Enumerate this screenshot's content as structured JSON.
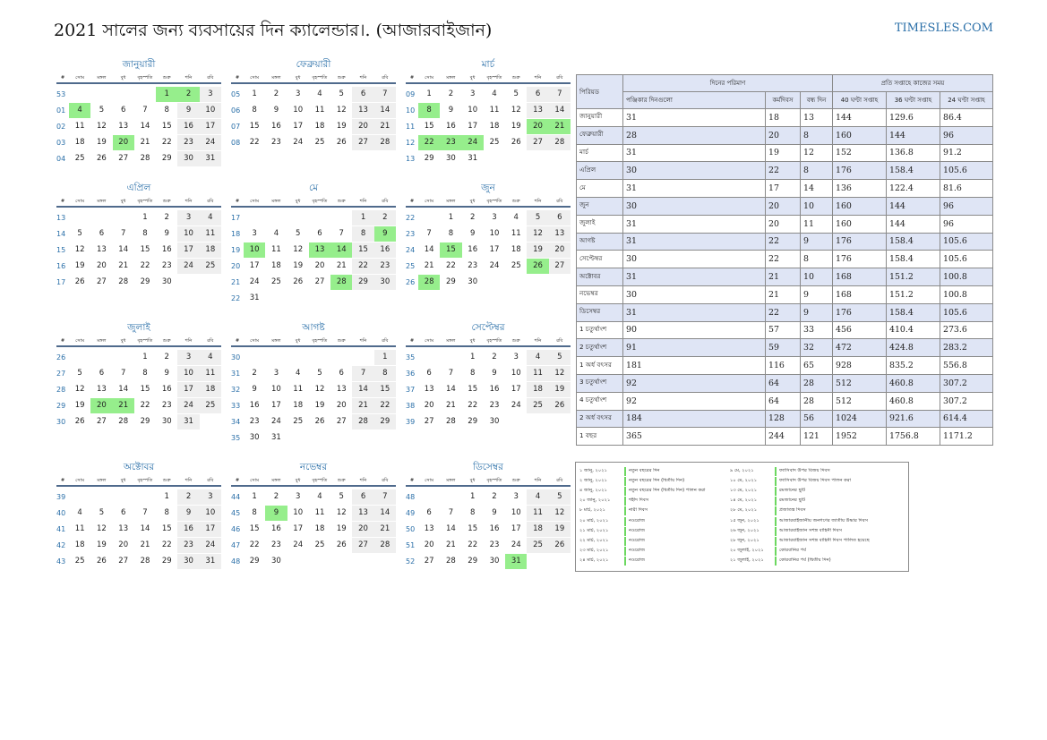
{
  "title": "2021 সালের জন্য ব্যবসায়ের দিন ক্যালেন্ডার।. (আজারবাইজান)",
  "site": "TIMESLES.COM",
  "colors": {
    "accent": "#2a6fa8",
    "holiday": "#96ee8c",
    "weekend": "#efefef",
    "header_shade": "#dfe5f5"
  },
  "weekday_headers": [
    "#",
    "সোম",
    "মঙ্গল",
    "বুধ",
    "বৃহস্পতি",
    "শুক্র",
    "শনি",
    "রবি"
  ],
  "months": [
    {
      "name": "জানুয়ারী",
      "weeks": [
        [
          "53",
          "",
          "",
          "",
          "",
          "1",
          "2",
          "3"
        ],
        [
          "01",
          "4",
          "5",
          "6",
          "7",
          "8",
          "9",
          "10"
        ],
        [
          "02",
          "11",
          "12",
          "13",
          "14",
          "15",
          "16",
          "17"
        ],
        [
          "03",
          "18",
          "19",
          "20",
          "21",
          "22",
          "23",
          "24"
        ],
        [
          "04",
          "25",
          "26",
          "27",
          "28",
          "29",
          "30",
          "31"
        ]
      ],
      "holidays": [
        "1",
        "2",
        "4",
        "20"
      ]
    },
    {
      "name": "ফেব্রুয়ারী",
      "weeks": [
        [
          "05",
          "1",
          "2",
          "3",
          "4",
          "5",
          "6",
          "7"
        ],
        [
          "06",
          "8",
          "9",
          "10",
          "11",
          "12",
          "13",
          "14"
        ],
        [
          "07",
          "15",
          "16",
          "17",
          "18",
          "19",
          "20",
          "21"
        ],
        [
          "08",
          "22",
          "23",
          "24",
          "25",
          "26",
          "27",
          "28"
        ]
      ],
      "holidays": []
    },
    {
      "name": "মার্চ",
      "weeks": [
        [
          "09",
          "1",
          "2",
          "3",
          "4",
          "5",
          "6",
          "7"
        ],
        [
          "10",
          "8",
          "9",
          "10",
          "11",
          "12",
          "13",
          "14"
        ],
        [
          "11",
          "15",
          "16",
          "17",
          "18",
          "19",
          "20",
          "21"
        ],
        [
          "12",
          "22",
          "23",
          "24",
          "25",
          "26",
          "27",
          "28"
        ],
        [
          "13",
          "29",
          "30",
          "31",
          "",
          "",
          "",
          ""
        ]
      ],
      "holidays": [
        "8",
        "20",
        "21",
        "22",
        "23",
        "24"
      ]
    },
    {
      "name": "এপ্রিল",
      "weeks": [
        [
          "13",
          "",
          "",
          "",
          "1",
          "2",
          "3",
          "4"
        ],
        [
          "14",
          "5",
          "6",
          "7",
          "8",
          "9",
          "10",
          "11"
        ],
        [
          "15",
          "12",
          "13",
          "14",
          "15",
          "16",
          "17",
          "18"
        ],
        [
          "16",
          "19",
          "20",
          "21",
          "22",
          "23",
          "24",
          "25"
        ],
        [
          "17",
          "26",
          "27",
          "28",
          "29",
          "30",
          "",
          ""
        ]
      ],
      "holidays": []
    },
    {
      "name": "মে",
      "weeks": [
        [
          "17",
          "",
          "",
          "",
          "",
          "",
          "1",
          "2"
        ],
        [
          "18",
          "3",
          "4",
          "5",
          "6",
          "7",
          "8",
          "9"
        ],
        [
          "19",
          "10",
          "11",
          "12",
          "13",
          "14",
          "15",
          "16"
        ],
        [
          "20",
          "17",
          "18",
          "19",
          "20",
          "21",
          "22",
          "23"
        ],
        [
          "21",
          "24",
          "25",
          "26",
          "27",
          "28",
          "29",
          "30"
        ],
        [
          "22",
          "31",
          "",
          "",
          "",
          "",
          "",
          ""
        ]
      ],
      "holidays": [
        "9",
        "10",
        "13",
        "14",
        "28"
      ]
    },
    {
      "name": "জুন",
      "weeks": [
        [
          "22",
          "",
          "1",
          "2",
          "3",
          "4",
          "5",
          "6"
        ],
        [
          "23",
          "7",
          "8",
          "9",
          "10",
          "11",
          "12",
          "13"
        ],
        [
          "24",
          "14",
          "15",
          "16",
          "17",
          "18",
          "19",
          "20"
        ],
        [
          "25",
          "21",
          "22",
          "23",
          "24",
          "25",
          "26",
          "27"
        ],
        [
          "26",
          "28",
          "29",
          "30",
          "",
          "",
          "",
          ""
        ]
      ],
      "holidays": [
        "15",
        "26",
        "28"
      ]
    },
    {
      "name": "জুলাই",
      "weeks": [
        [
          "26",
          "",
          "",
          "",
          "1",
          "2",
          "3",
          "4"
        ],
        [
          "27",
          "5",
          "6",
          "7",
          "8",
          "9",
          "10",
          "11"
        ],
        [
          "28",
          "12",
          "13",
          "14",
          "15",
          "16",
          "17",
          "18"
        ],
        [
          "29",
          "19",
          "20",
          "21",
          "22",
          "23",
          "24",
          "25"
        ],
        [
          "30",
          "26",
          "27",
          "28",
          "29",
          "30",
          "31",
          ""
        ]
      ],
      "holidays": [
        "20",
        "21"
      ]
    },
    {
      "name": "আগষ্ট",
      "weeks": [
        [
          "30",
          "",
          "",
          "",
          "",
          "",
          "",
          "1"
        ],
        [
          "31",
          "2",
          "3",
          "4",
          "5",
          "6",
          "7",
          "8"
        ],
        [
          "32",
          "9",
          "10",
          "11",
          "12",
          "13",
          "14",
          "15"
        ],
        [
          "33",
          "16",
          "17",
          "18",
          "19",
          "20",
          "21",
          "22"
        ],
        [
          "34",
          "23",
          "24",
          "25",
          "26",
          "27",
          "28",
          "29"
        ],
        [
          "35",
          "30",
          "31",
          "",
          "",
          "",
          "",
          ""
        ]
      ],
      "holidays": []
    },
    {
      "name": "সেপ্টেম্বর",
      "weeks": [
        [
          "35",
          "",
          "",
          "1",
          "2",
          "3",
          "4",
          "5"
        ],
        [
          "36",
          "6",
          "7",
          "8",
          "9",
          "10",
          "11",
          "12"
        ],
        [
          "37",
          "13",
          "14",
          "15",
          "16",
          "17",
          "18",
          "19"
        ],
        [
          "38",
          "20",
          "21",
          "22",
          "23",
          "24",
          "25",
          "26"
        ],
        [
          "39",
          "27",
          "28",
          "29",
          "30",
          "",
          "",
          ""
        ]
      ],
      "holidays": []
    },
    {
      "name": "অক্টোবর",
      "weeks": [
        [
          "39",
          "",
          "",
          "",
          "",
          "1",
          "2",
          "3"
        ],
        [
          "40",
          "4",
          "5",
          "6",
          "7",
          "8",
          "9",
          "10"
        ],
        [
          "41",
          "11",
          "12",
          "13",
          "14",
          "15",
          "16",
          "17"
        ],
        [
          "42",
          "18",
          "19",
          "20",
          "21",
          "22",
          "23",
          "24"
        ],
        [
          "43",
          "25",
          "26",
          "27",
          "28",
          "29",
          "30",
          "31"
        ]
      ],
      "holidays": []
    },
    {
      "name": "নভেম্বর",
      "weeks": [
        [
          "44",
          "1",
          "2",
          "3",
          "4",
          "5",
          "6",
          "7"
        ],
        [
          "45",
          "8",
          "9",
          "10",
          "11",
          "12",
          "13",
          "14"
        ],
        [
          "46",
          "15",
          "16",
          "17",
          "18",
          "19",
          "20",
          "21"
        ],
        [
          "47",
          "22",
          "23",
          "24",
          "25",
          "26",
          "27",
          "28"
        ],
        [
          "48",
          "29",
          "30",
          "",
          "",
          "",
          "",
          ""
        ]
      ],
      "holidays": [
        "9"
      ]
    },
    {
      "name": "ডিসেম্বর",
      "weeks": [
        [
          "48",
          "",
          "",
          "1",
          "2",
          "3",
          "4",
          "5"
        ],
        [
          "49",
          "6",
          "7",
          "8",
          "9",
          "10",
          "11",
          "12"
        ],
        [
          "50",
          "13",
          "14",
          "15",
          "16",
          "17",
          "18",
          "19"
        ],
        [
          "51",
          "20",
          "21",
          "22",
          "23",
          "24",
          "25",
          "26"
        ],
        [
          "52",
          "27",
          "28",
          "29",
          "30",
          "31",
          "",
          ""
        ]
      ],
      "holidays": [
        "31"
      ]
    }
  ],
  "summary": {
    "period_header": "পিরিয়ড",
    "days_header": "দিনের পরিমাণ",
    "hours_header": "প্রতি সপ্তাহে কাজের সময়",
    "sub_headers": [
      "পঞ্জিকার দিনগুলো",
      "কর্মদিবস",
      "বন্ধ দিন",
      "40 ঘণ্টা সপ্তাহ",
      "36 ঘণ্টা সপ্তাহ",
      "24 ঘণ্টা সপ্তাহ"
    ],
    "rows": [
      [
        "জানুয়ারী",
        "31",
        "18",
        "13",
        "144",
        "129.6",
        "86.4"
      ],
      [
        "ফেব্রুয়ারী",
        "28",
        "20",
        "8",
        "160",
        "144",
        "96"
      ],
      [
        "মার্চ",
        "31",
        "19",
        "12",
        "152",
        "136.8",
        "91.2"
      ],
      [
        "এপ্রিল",
        "30",
        "22",
        "8",
        "176",
        "158.4",
        "105.6"
      ],
      [
        "মে",
        "31",
        "17",
        "14",
        "136",
        "122.4",
        "81.6"
      ],
      [
        "জুন",
        "30",
        "20",
        "10",
        "160",
        "144",
        "96"
      ],
      [
        "জুলাই",
        "31",
        "20",
        "11",
        "160",
        "144",
        "96"
      ],
      [
        "আগষ্ট",
        "31",
        "22",
        "9",
        "176",
        "158.4",
        "105.6"
      ],
      [
        "সেপ্টেম্বর",
        "30",
        "22",
        "8",
        "176",
        "158.4",
        "105.6"
      ],
      [
        "অক্টোবর",
        "31",
        "21",
        "10",
        "168",
        "151.2",
        "100.8"
      ],
      [
        "নভেম্বর",
        "30",
        "21",
        "9",
        "168",
        "151.2",
        "100.8"
      ],
      [
        "ডিসেম্বর",
        "31",
        "22",
        "9",
        "176",
        "158.4",
        "105.6"
      ],
      [
        "1 চতুর্থাংশ",
        "90",
        "57",
        "33",
        "456",
        "410.4",
        "273.6"
      ],
      [
        "2 চতুর্থাংশ",
        "91",
        "59",
        "32",
        "472",
        "424.8",
        "283.2"
      ],
      [
        "1 অর্ধ বৎসর",
        "181",
        "116",
        "65",
        "928",
        "835.2",
        "556.8"
      ],
      [
        "3 চতুর্থাংশ",
        "92",
        "64",
        "28",
        "512",
        "460.8",
        "307.2"
      ],
      [
        "4 চতুর্থাংশ",
        "92",
        "64",
        "28",
        "512",
        "460.8",
        "307.2"
      ],
      [
        "2 অর্ধ বৎসর",
        "184",
        "128",
        "56",
        "1024",
        "921.6",
        "614.4"
      ],
      [
        "1 বছর",
        "365",
        "244",
        "121",
        "1952",
        "1756.8",
        "1171.2"
      ]
    ]
  },
  "holiday_list": [
    {
      "date": "১ জানু, ২০২১",
      "name": "নতুন বছরের দিন"
    },
    {
      "date": "২ জানু, ২০২১",
      "name": "নতুন বছরের দিন (দ্বিতীয় দিন)"
    },
    {
      "date": "৪ জানু, ২০২১",
      "name": "নতুন বছরের দিন (দ্বিতীয় দিন) পালন করা"
    },
    {
      "date": "২০ জানু, ২০২১",
      "name": "শহীদ দিবস"
    },
    {
      "date": "৮ মার্চ, ২০২১",
      "name": "নারী দিবস"
    },
    {
      "date": "২০ মার্চ, ২০২১",
      "name": "নওরোজ"
    },
    {
      "date": "২১ মার্চ, ২০২১",
      "name": "নওরোজ"
    },
    {
      "date": "২২ মার্চ, ২০২১",
      "name": "নওরোজ"
    },
    {
      "date": "২৩ মার্চ, ২০২১",
      "name": "নওরোজ"
    },
    {
      "date": "২৪ মার্চ, ২০২১",
      "name": "নওরোজ"
    },
    {
      "date": "৯ মে, ২০২১",
      "name": "ফ্যাসিবাদ উপর বিজয় দিবস"
    },
    {
      "date": "১০ মে, ২০২১",
      "name": "ফ্যাসিবাদ উপর বিজয় দিবস পালন করা"
    },
    {
      "date": "১৩ মে, ২০২১",
      "name": "রমজানের ছুটি"
    },
    {
      "date": "১৪ মে, ২০২১",
      "name": "রমজানের ছুটি"
    },
    {
      "date": "২৮ মে, ২০২১",
      "name": "প্রজাতন্ত্র দিবস"
    },
    {
      "date": "১৫ জুন, ২০২১",
      "name": "আজারবাইজানীয় জনগণের জাতীয় উদ্ধার দিবস"
    },
    {
      "date": "২৬ জুন, ২০২১",
      "name": "আজারবাইজান সশস্ত্র বাহিনী দিবস"
    },
    {
      "date": "২৮ জুন, ২০২১",
      "name": "আজারবাইজান সশস্ত্র বাহিনী দিবস পালিত হয়েছে"
    },
    {
      "date": "২০ জুলাই, ২০২১",
      "name": "কোরবানির পর্ব"
    },
    {
      "date": "২১ জুলাই, ২০২১",
      "name": "কোরবানির পর্ব (দ্বিতীয় দিন)"
    }
  ]
}
